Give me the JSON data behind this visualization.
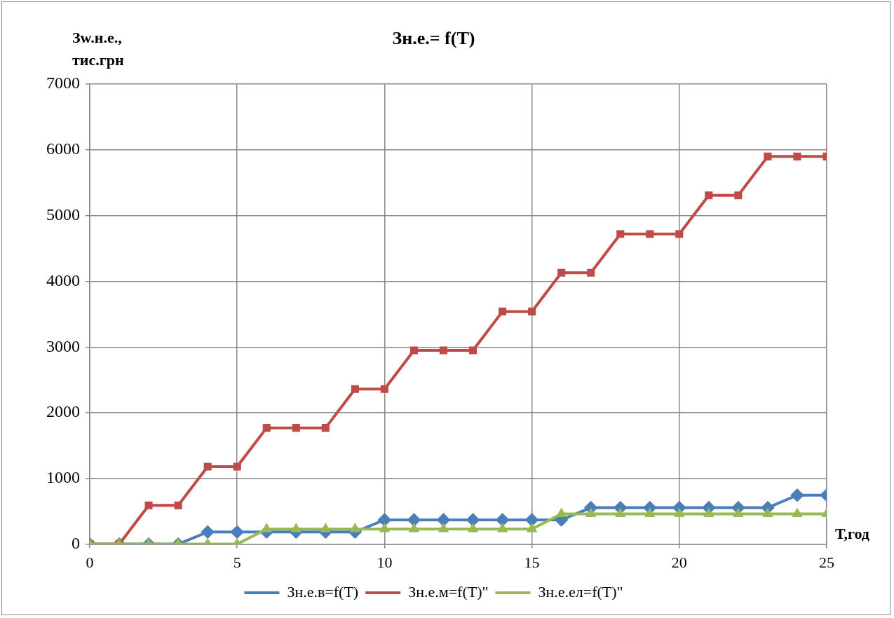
{
  "chart_data": {
    "type": "line",
    "title": "Зн.е.= f(T)",
    "xlabel": "Т,год",
    "ylabel": "Зw.н.е.,\nтис.грн",
    "x": [
      0,
      1,
      2,
      3,
      4,
      5,
      6,
      7,
      8,
      9,
      10,
      11,
      12,
      13,
      14,
      15,
      16,
      17,
      18,
      19,
      20,
      21,
      22,
      23,
      24,
      25
    ],
    "xlim": [
      0,
      25
    ],
    "xticks": [
      0,
      5,
      10,
      15,
      20,
      25
    ],
    "ylim": [
      0,
      7000
    ],
    "yticks": [
      0,
      1000,
      2000,
      3000,
      4000,
      5000,
      6000,
      7000
    ],
    "grid": true,
    "legend": "bottom",
    "line_style": "solid",
    "series": [
      {
        "name": "Зн.е.в=f(T)",
        "color": "#4a7ebb",
        "marker": "diamond",
        "values": [
          0,
          0,
          0,
          0,
          185,
          185,
          185,
          185,
          185,
          185,
          370,
          370,
          370,
          370,
          370,
          370,
          370,
          555,
          555,
          555,
          555,
          555,
          555,
          555,
          745,
          745
        ]
      },
      {
        "name": "Зн.е.м=f(T)\"",
        "color": "#be4b48",
        "marker": "square",
        "values": [
          0,
          0,
          590,
          590,
          1180,
          1180,
          1770,
          1770,
          1770,
          2360,
          2360,
          2950,
          2950,
          2950,
          3540,
          3540,
          4130,
          4130,
          4720,
          4720,
          4720,
          5310,
          5310,
          5900,
          5900,
          5900
        ]
      },
      {
        "name": "Зн.е.ел=f(T)\"",
        "color": "#98b954",
        "marker": "triangle",
        "values": [
          0,
          0,
          0,
          0,
          0,
          0,
          230,
          230,
          230,
          230,
          230,
          230,
          230,
          230,
          230,
          230,
          460,
          460,
          460,
          460,
          460,
          460,
          460,
          460,
          460,
          460
        ]
      }
    ]
  }
}
